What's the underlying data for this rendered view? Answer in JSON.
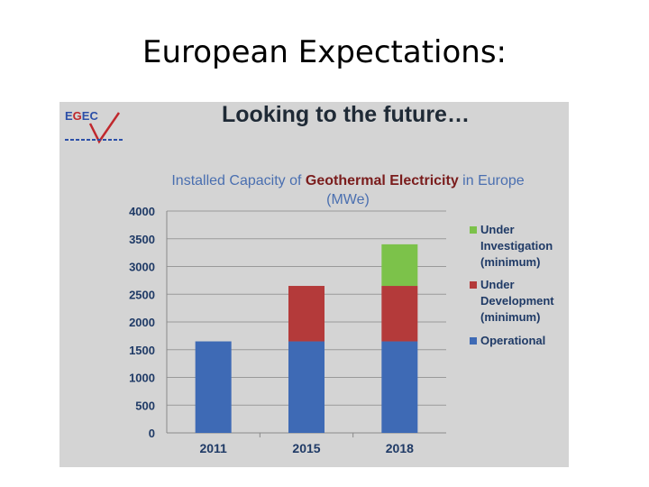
{
  "slide": {
    "title": "European Expectations:"
  },
  "logo": {
    "e": "E",
    "g": "G",
    "c": "EC"
  },
  "heading": "Looking to the future…",
  "chart_title": {
    "part1": "Installed Capacity of ",
    "highlight": "Geothermal Electricity",
    "part2": " in Europe (MWe)"
  },
  "colors": {
    "operational": "#3e6ab5",
    "under_development": "#b43a3a",
    "under_investigation": "#7cc24a",
    "panel": "#d4d4d4"
  },
  "chart_data": {
    "type": "bar",
    "stacked": true,
    "title": "Installed Capacity of Geothermal Electricity in Europe (MWe)",
    "xlabel": "",
    "ylabel": "",
    "categories": [
      "2011",
      "2015",
      "2018"
    ],
    "ylim": [
      0,
      4000
    ],
    "yticks": [
      0,
      500,
      1000,
      1500,
      2000,
      2500,
      3000,
      3500,
      4000
    ],
    "grid": true,
    "legend_position": "right",
    "series": [
      {
        "name": "Operational",
        "legend_lines": [
          "Operational"
        ],
        "color": "#3e6ab5",
        "values": [
          1650,
          1650,
          1650
        ]
      },
      {
        "name": "Under Development (minimum)",
        "legend_lines": [
          "Under",
          "Development",
          "(minimum)"
        ],
        "color": "#b43a3a",
        "values": [
          0,
          1000,
          1000
        ]
      },
      {
        "name": "Under Investigation (minimum)",
        "legend_lines": [
          "Under",
          "Investigation",
          "(minimum)"
        ],
        "color": "#7cc24a",
        "values": [
          0,
          0,
          750
        ]
      }
    ]
  }
}
